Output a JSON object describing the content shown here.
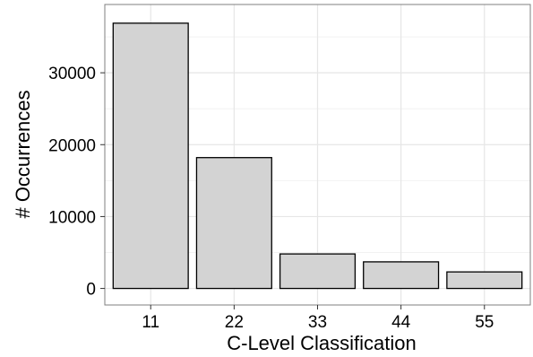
{
  "chart_data": {
    "type": "bar",
    "title": "",
    "xlabel": "C-Level Classification",
    "ylabel": "# Occurrences",
    "categories": [
      "11",
      "22",
      "33",
      "44",
      "55"
    ],
    "values": [
      36900,
      18200,
      4800,
      3700,
      2300
    ],
    "ylim": [
      -2300,
      39500
    ],
    "yticks": [
      0,
      10000,
      20000,
      30000
    ],
    "ytick_labels": [
      "0",
      "10000",
      "20000",
      "30000"
    ],
    "grid": true,
    "legend": "none",
    "colors": {
      "bar_fill": "#d3d3d3",
      "bar_stroke": "#000000",
      "grid_major": "#e6e6e6",
      "grid_minor": "#f2f2f2",
      "panel_border": "#7f7f7f",
      "background": "#ffffff"
    }
  }
}
